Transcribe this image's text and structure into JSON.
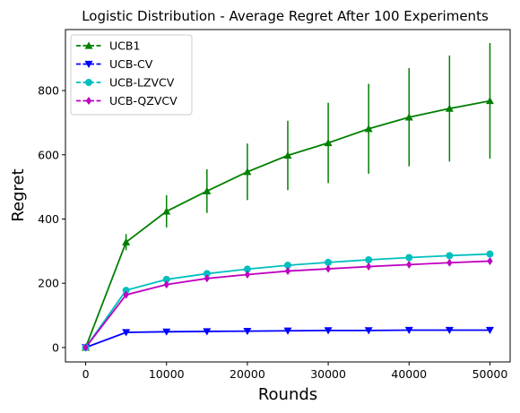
{
  "chart_data": {
    "type": "line",
    "title": "Logistic Distribution - Average Regret After 100 Experiments",
    "xlabel": "Rounds",
    "ylabel": "Regret",
    "xlim": [
      -2500,
      52500
    ],
    "ylim": [
      -45,
      990
    ],
    "xticks": [
      0,
      10000,
      20000,
      30000,
      40000,
      50000
    ],
    "yticks": [
      0,
      200,
      400,
      600,
      800
    ],
    "grid": false,
    "legend_position": "top-left",
    "x": [
      0,
      5000,
      10000,
      15000,
      20000,
      25000,
      30000,
      35000,
      40000,
      45000,
      50000
    ],
    "series": [
      {
        "name": "UCB1",
        "color": "#008000",
        "marker": "triangle-up",
        "values": [
          0,
          328,
          424,
          487,
          547,
          598,
          637,
          681,
          717,
          744,
          768
        ],
        "errors": [
          0,
          25,
          50,
          68,
          88,
          108,
          125,
          140,
          153,
          165,
          180
        ]
      },
      {
        "name": "UCB-CV",
        "color": "#0000ff",
        "marker": "triangle-down",
        "values": [
          0,
          47,
          49,
          50,
          51,
          52,
          53,
          53,
          54,
          54,
          54
        ],
        "errors": [
          0,
          1,
          1,
          1,
          1,
          1,
          1,
          1,
          1,
          1,
          1
        ]
      },
      {
        "name": "UCB-LZVCV",
        "color": "#00bfbf",
        "marker": "circle",
        "values": [
          0,
          178,
          212,
          230,
          244,
          256,
          265,
          273,
          280,
          286,
          291
        ],
        "errors": [
          0,
          3,
          3,
          3,
          3,
          3,
          3,
          3,
          3,
          3,
          3
        ]
      },
      {
        "name": "UCB-QZVCV",
        "color": "#bf00bf",
        "marker": "diamond",
        "values": [
          0,
          164,
          196,
          215,
          227,
          238,
          245,
          252,
          258,
          264,
          269
        ],
        "errors": [
          0,
          3,
          3,
          3,
          3,
          3,
          3,
          3,
          3,
          3,
          3
        ]
      }
    ]
  }
}
